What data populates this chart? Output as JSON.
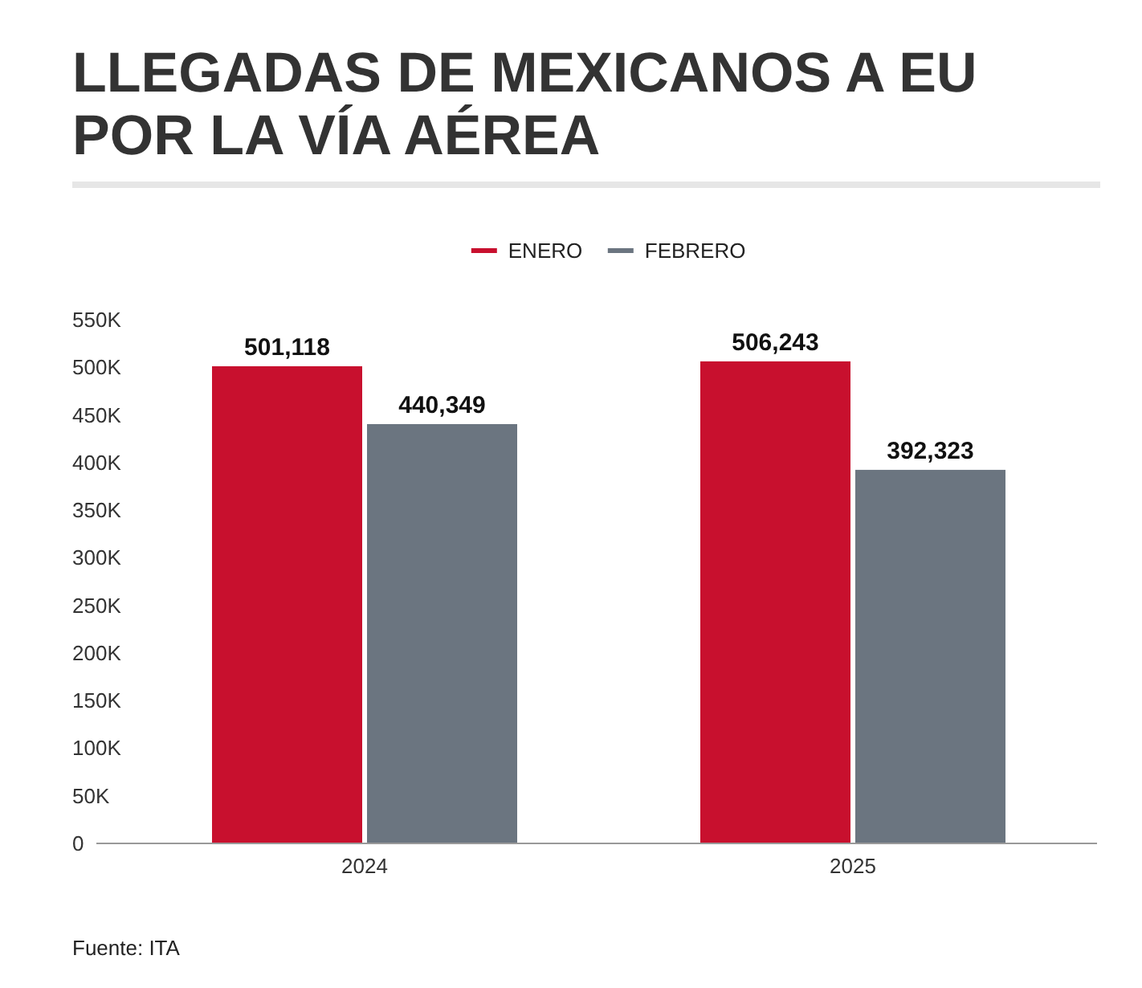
{
  "chart_data": {
    "type": "bar",
    "title": "LLEGADAS DE MEXICANOS A EU POR LA VÍA AÉREA",
    "categories": [
      "2024",
      "2025"
    ],
    "series": [
      {
        "name": "ENERO",
        "color": "#c8102e",
        "values": [
          501118,
          506243
        ],
        "value_labels": [
          "501,118",
          "506,243"
        ]
      },
      {
        "name": "FEBRERO",
        "color": "#6b7580",
        "values": [
          440349,
          392323
        ],
        "value_labels": [
          "440,349",
          "392,323"
        ]
      }
    ],
    "ylim": [
      0,
      550000
    ],
    "yticks": [
      0,
      {
        "value": 50000,
        "label": "50K"
      },
      {
        "value": 100000,
        "label": "100K"
      },
      {
        "value": 150000,
        "label": "150K"
      },
      {
        "value": 200000,
        "label": "200K"
      },
      {
        "value": 250000,
        "label": "250K"
      },
      {
        "value": 300000,
        "label": "300K"
      },
      {
        "value": 350000,
        "label": "350K"
      },
      {
        "value": 400000,
        "label": "400K"
      },
      {
        "value": 450000,
        "label": "450K"
      },
      {
        "value": 500000,
        "label": "500K"
      },
      {
        "value": 550000,
        "label": "550K"
      }
    ],
    "legend": "top",
    "annotations": [
      "Fuente: ITA"
    ]
  }
}
